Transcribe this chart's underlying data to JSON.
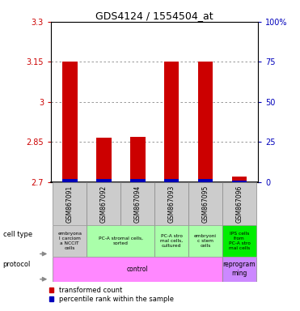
{
  "title": "GDS4124 / 1554504_at",
  "samples": [
    "GSM867091",
    "GSM867092",
    "GSM867094",
    "GSM867093",
    "GSM867095",
    "GSM867096"
  ],
  "transformed_counts": [
    3.15,
    2.865,
    2.87,
    3.15,
    3.15,
    2.72
  ],
  "percentile_ranks": [
    2,
    2,
    2,
    2,
    2,
    0
  ],
  "ylim_left": [
    2.7,
    3.3
  ],
  "ylim_right": [
    0,
    100
  ],
  "yticks_left": [
    2.7,
    2.85,
    3.0,
    3.15,
    3.3
  ],
  "yticks_right": [
    0,
    25,
    50,
    75,
    100
  ],
  "ytick_labels_left": [
    "2.7",
    "2.85",
    "3",
    "3.15",
    "3.3"
  ],
  "ytick_labels_right": [
    "0",
    "25",
    "50",
    "75",
    "100%"
  ],
  "bar_color": "#cc0000",
  "percentile_color": "#0000bb",
  "grid_color": "#888888",
  "left_axis_color": "#cc0000",
  "right_axis_color": "#0000bb",
  "cell_type_data": [
    [
      0,
      1,
      "#cccccc",
      "embryona\nl carciom\na NCCIT\ncells"
    ],
    [
      1,
      3,
      "#aaffaa",
      "PC-A stromal cells,\nsorted"
    ],
    [
      3,
      4,
      "#aaffaa",
      "PC-A stro\nmal cells,\ncultured"
    ],
    [
      4,
      5,
      "#aaffaa",
      "embryoni\nc stem\ncells"
    ],
    [
      5,
      6,
      "#00ee00",
      "IPS cells\nfrom\nPC-A stro\nmal cells"
    ]
  ],
  "proto_data": [
    [
      0,
      5,
      "#ff88ff",
      "control"
    ],
    [
      5,
      6,
      "#cc88ff",
      "reprogram\nming"
    ]
  ]
}
